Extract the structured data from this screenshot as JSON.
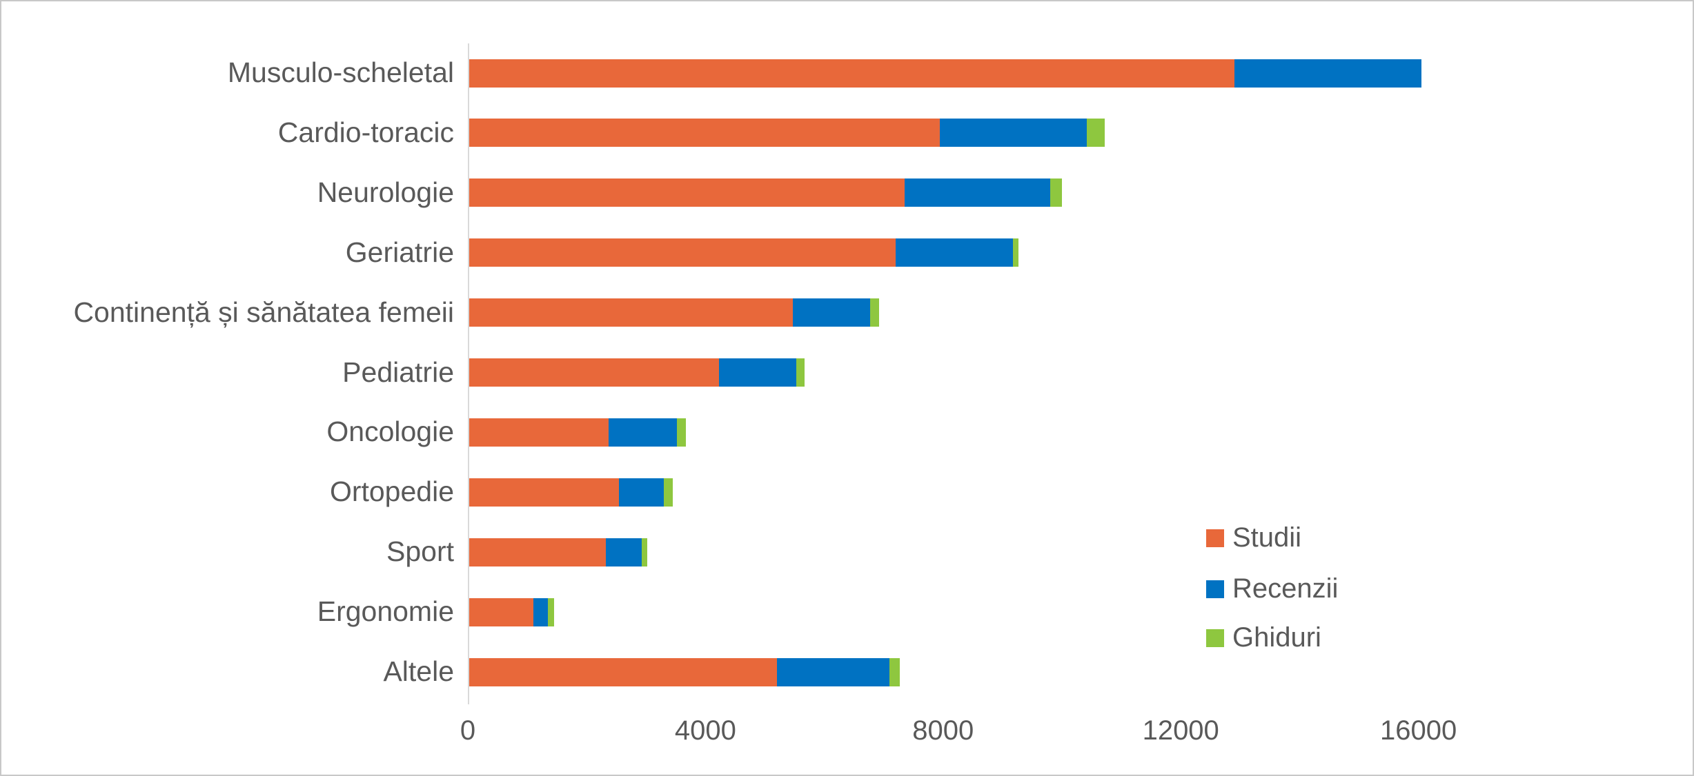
{
  "chart_data": {
    "type": "bar",
    "orientation": "horizontal",
    "stacked": true,
    "title": "",
    "grid": false,
    "categories": [
      "Musculo-scheletal",
      "Cardio-toracic",
      "Neurologie",
      "Geriatrie",
      "Continență și sănătatea femeii",
      "Pediatrie",
      "Oncologie",
      "Ortopedie",
      "Sport",
      "Ergonomie",
      "Altele"
    ],
    "series": [
      {
        "name": "Studii",
        "color": "#e8683a",
        "values": [
          12875,
          7925,
          7325,
          7175,
          5450,
          4200,
          2350,
          2525,
          2300,
          1075,
          5175
        ]
      },
      {
        "name": "Recenzii",
        "color": "#0072c2",
        "values": [
          3150,
          2475,
          2450,
          1975,
          1300,
          1300,
          1150,
          750,
          600,
          250,
          1900
        ]
      },
      {
        "name": "Ghiduri",
        "color": "#8ec73f",
        "values": [
          0,
          300,
          200,
          100,
          150,
          150,
          150,
          150,
          100,
          100,
          175
        ]
      }
    ],
    "x_axis": {
      "ticks": [
        0,
        4000,
        8000,
        12000,
        16000
      ],
      "tick_labels": [
        "0",
        "4000",
        "8000",
        "12000",
        "16000"
      ],
      "range": [
        0,
        20600
      ]
    },
    "legend": {
      "position": "right-middle",
      "labels": [
        "Studii",
        "Recenzii",
        "Ghiduri"
      ]
    },
    "text_color": "#595959",
    "axis_line_color": "#d9d9d9"
  }
}
